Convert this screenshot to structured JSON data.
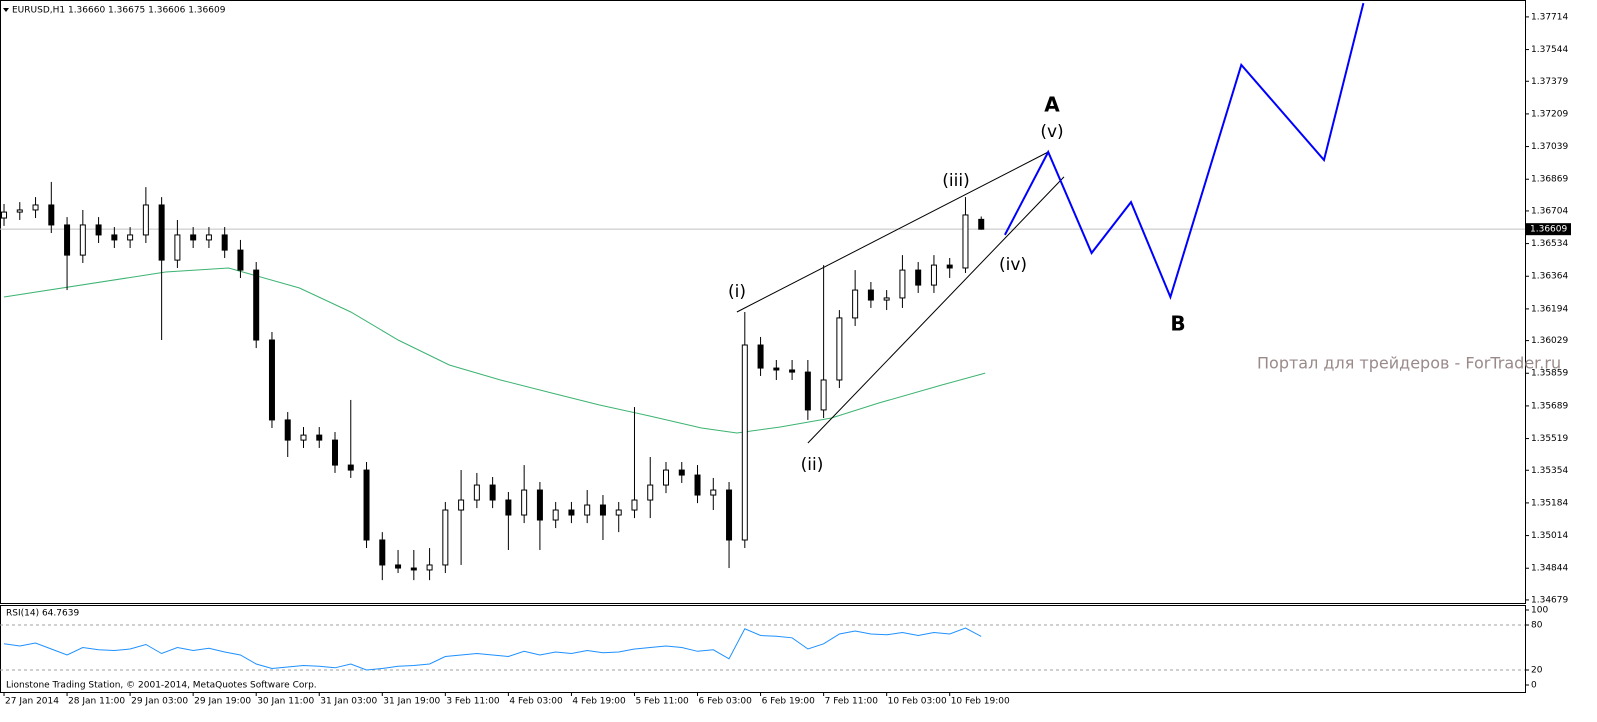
{
  "chart_data": [
    {
      "type": "candlestick",
      "title": "EURUSD,H1  1.36660 1.36675 1.36606 1.36609",
      "x": [
        0,
        4,
        8,
        12,
        16,
        20,
        24,
        28,
        32,
        36,
        40,
        44,
        48,
        52,
        56,
        60,
        64,
        68,
        72,
        76,
        80,
        84,
        88,
        92,
        96,
        100,
        104,
        108,
        112,
        116,
        120,
        124,
        128,
        132,
        136,
        140,
        144,
        148,
        152,
        156,
        160,
        164,
        168,
        172,
        176,
        180,
        184,
        188,
        192,
        196,
        200,
        204,
        208,
        212,
        216,
        220,
        224,
        228,
        232,
        236,
        240,
        244,
        248
      ],
      "open": [
        1.36667,
        1.36698,
        1.36709,
        1.36735,
        1.36631,
        1.36474,
        1.36631,
        1.36579,
        1.36553,
        1.36579,
        1.36735,
        1.36448,
        1.36579,
        1.36553,
        1.36579,
        1.365,
        1.36396,
        1.36032,
        1.35616,
        1.35511,
        1.35537,
        1.35511,
        1.35381,
        1.35355,
        1.34991,
        1.34861,
        1.34845,
        1.34835,
        1.34861,
        1.35147,
        1.35199,
        1.35277,
        1.35199,
        1.35121,
        1.35251,
        1.35095,
        1.35147,
        1.35121,
        1.35173,
        1.35121,
        1.35147,
        1.35199,
        1.35277,
        1.35355,
        1.35329,
        1.35225,
        1.35251,
        1.34991,
        1.36006,
        1.35886,
        1.35876,
        1.35865,
        1.35668,
        1.35824,
        1.36147,
        1.36292,
        1.3624,
        1.36251,
        1.36396,
        1.36318,
        1.36422,
        1.36407,
        1.3666
      ],
      "high": [
        1.3674,
        1.3675,
        1.36776,
        1.36855,
        1.36672,
        1.36709,
        1.36672,
        1.3662,
        1.3662,
        1.36828,
        1.36776,
        1.36657,
        1.3662,
        1.3662,
        1.3662,
        1.36553,
        1.36438,
        1.36074,
        1.35657,
        1.35579,
        1.35579,
        1.35553,
        1.3572,
        1.35397,
        1.35032,
        1.34939,
        1.34939,
        1.34949,
        1.35189,
        1.35355,
        1.3534,
        1.35319,
        1.35241,
        1.35381,
        1.35293,
        1.35189,
        1.35189,
        1.35251,
        1.35225,
        1.35189,
        1.35683,
        1.35423,
        1.35397,
        1.35397,
        1.35381,
        1.35314,
        1.35293,
        1.36178,
        1.36048,
        1.35928,
        1.35928,
        1.35928,
        1.36422,
        1.36188,
        1.36396,
        1.36334,
        1.36292,
        1.36474,
        1.36438,
        1.36474,
        1.36459,
        1.36776,
        1.36675
      ],
      "low": [
        1.36626,
        1.36657,
        1.36667,
        1.36589,
        1.36292,
        1.36433,
        1.36537,
        1.36511,
        1.36511,
        1.36537,
        1.36032,
        1.36407,
        1.36511,
        1.36511,
        1.36459,
        1.36355,
        1.3599,
        1.35574,
        1.35423,
        1.3547,
        1.3547,
        1.3534,
        1.35314,
        1.34949,
        1.34782,
        1.34819,
        1.34782,
        1.34782,
        1.34819,
        1.34861,
        1.35157,
        1.35157,
        1.34939,
        1.35079,
        1.34939,
        1.35053,
        1.35079,
        1.35079,
        1.34991,
        1.35032,
        1.35105,
        1.35105,
        1.35235,
        1.35288,
        1.35183,
        1.35147,
        1.34845,
        1.34949,
        1.35845,
        1.35824,
        1.35824,
        1.35616,
        1.35626,
        1.35782,
        1.36105,
        1.36199,
        1.36188,
        1.36199,
        1.36277,
        1.36277,
        1.36355,
        1.36381,
        1.36606
      ],
      "close": [
        1.36698,
        1.36709,
        1.36735,
        1.36631,
        1.36474,
        1.36631,
        1.36579,
        1.36553,
        1.36579,
        1.36735,
        1.36448,
        1.36579,
        1.36553,
        1.36579,
        1.365,
        1.36396,
        1.36032,
        1.35616,
        1.35511,
        1.35537,
        1.35511,
        1.35381,
        1.35355,
        1.34991,
        1.34861,
        1.34845,
        1.34835,
        1.34861,
        1.35147,
        1.35199,
        1.35277,
        1.35199,
        1.35121,
        1.35251,
        1.35095,
        1.35147,
        1.35121,
        1.35173,
        1.35121,
        1.35147,
        1.35199,
        1.35277,
        1.35355,
        1.35329,
        1.35225,
        1.35251,
        1.34991,
        1.36006,
        1.35886,
        1.35876,
        1.35865,
        1.35668,
        1.35824,
        1.36147,
        1.36292,
        1.3624,
        1.36251,
        1.36396,
        1.36318,
        1.36422,
        1.36407,
        1.36683,
        1.36609
      ],
      "color": "#000000",
      "xlim": [
        -1.02,
        386
      ],
      "xticks": [
        {
          "value": 0,
          "label": "27 Jan 2014"
        },
        {
          "value": 16,
          "label": "28 Jan 11:00"
        },
        {
          "value": 32,
          "label": "29 Jan 03:00"
        },
        {
          "value": 48,
          "label": "29 Jan 19:00"
        },
        {
          "value": 64,
          "label": "30 Jan 11:00"
        },
        {
          "value": 80,
          "label": "31 Jan 03:00"
        },
        {
          "value": 96,
          "label": "31 Jan 19:00"
        },
        {
          "value": 112,
          "label": "3 Feb 11:00"
        },
        {
          "value": 128,
          "label": "4 Feb 03:00"
        },
        {
          "value": 144,
          "label": "4 Feb 19:00"
        },
        {
          "value": 160,
          "label": "5 Feb 11:00"
        },
        {
          "value": 176,
          "label": "6 Feb 03:00"
        },
        {
          "value": 192,
          "label": "6 Feb 19:00"
        },
        {
          "value": 208,
          "label": "7 Feb 11:00"
        },
        {
          "value": 224,
          "label": "10 Feb 03:00"
        },
        {
          "value": 240,
          "label": "10 Feb 19:00"
        }
      ],
      "ylim": [
        1.34663,
        1.37802
      ],
      "yticks": [
        1.37714,
        1.37544,
        1.37379,
        1.37209,
        1.37039,
        1.36869,
        1.36704,
        1.36534,
        1.36364,
        1.36194,
        1.36029,
        1.35859,
        1.35689,
        1.35519,
        1.35354,
        1.35184,
        1.35014,
        1.34844,
        1.34679
      ],
      "current_price": 1.36609,
      "moving_average": {
        "color": "#3cb371",
        "x": [
          0,
          41,
          57,
          75,
          88,
          100,
          113,
          126,
          139,
          151,
          164,
          177,
          186,
          197,
          210,
          222,
          238,
          249
        ],
        "values": [
          1.36256,
          1.36386,
          1.36407,
          1.36303,
          1.36178,
          1.36032,
          1.35902,
          1.35824,
          1.35756,
          1.35694,
          1.35636,
          1.35574,
          1.35548,
          1.35579,
          1.35626,
          1.35704,
          1.35798,
          1.3586
        ]
      },
      "forecast": {
        "color": "#0000ff",
        "x": [
          254,
          265,
          276,
          286,
          296,
          314,
          335,
          345
        ],
        "values": [
          1.36579,
          1.37011,
          1.36485,
          1.3675,
          1.36256,
          1.37464,
          1.36969,
          1.37786
        ]
      },
      "trendlines": [
        {
          "x": [
            186,
            265
          ],
          "values": [
            1.36178,
            1.37011
          ]
        },
        {
          "x": [
            204,
            269
          ],
          "values": [
            1.35496,
            1.36881
          ]
        }
      ],
      "wave_labels": [
        "(i)",
        "(ii)",
        "(iii)",
        "(iv)",
        "(v)"
      ],
      "pattern_labels": [
        "A",
        "B"
      ],
      "pattern_color": "#9b1fd6",
      "watermark": "Портал для трейдеров - ForTrader.ru"
    },
    {
      "type": "line",
      "title": "RSI(14) 64.7639",
      "color": "#1e90ff",
      "x": [
        0,
        4,
        8,
        12,
        16,
        20,
        24,
        28,
        32,
        36,
        40,
        44,
        48,
        52,
        56,
        60,
        64,
        68,
        72,
        76,
        80,
        84,
        88,
        92,
        96,
        100,
        104,
        108,
        112,
        116,
        120,
        124,
        128,
        132,
        136,
        140,
        144,
        148,
        152,
        156,
        160,
        164,
        168,
        172,
        176,
        180,
        184,
        188,
        192,
        196,
        200,
        204,
        208,
        212,
        216,
        220,
        224,
        228,
        232,
        236,
        240,
        244,
        248
      ],
      "values": [
        55,
        52,
        56,
        48,
        40,
        50,
        47,
        46,
        48,
        54,
        42,
        50,
        46,
        49,
        44,
        40,
        28,
        22,
        24,
        26,
        25,
        23,
        28,
        20,
        22,
        25,
        26,
        28,
        38,
        40,
        42,
        40,
        38,
        45,
        40,
        44,
        42,
        46,
        43,
        44,
        48,
        50,
        52,
        50,
        45,
        47,
        35,
        75,
        66,
        65,
        63,
        48,
        55,
        68,
        72,
        68,
        67,
        70,
        66,
        70,
        68,
        76,
        64.76
      ],
      "xlim": [
        -1.02,
        386
      ],
      "ylim": [
        -9.33,
        106.67
      ],
      "yticks": [
        100,
        80,
        20,
        0
      ],
      "levels": [
        80,
        20
      ]
    }
  ],
  "footer": "Lionstone Trading Station, © 2001-2014, MetaQuotes Software Corp."
}
